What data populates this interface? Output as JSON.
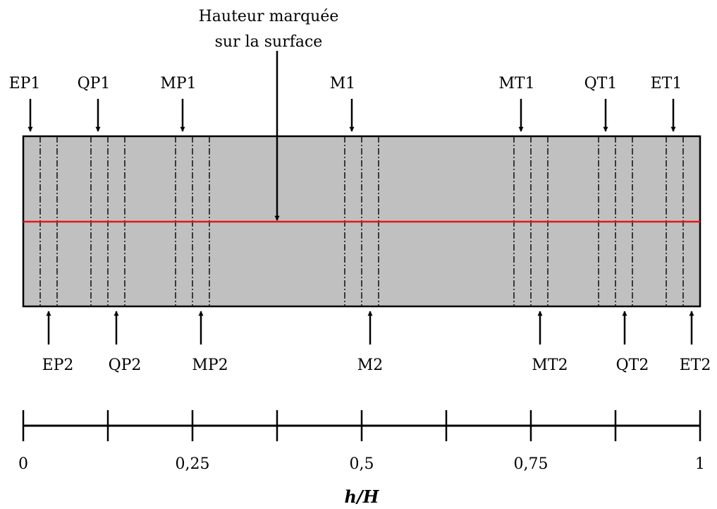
{
  "annotation": {
    "line1": "Hauteur marquée",
    "line2": "sur la surface"
  },
  "top_labels": [
    "EP1",
    "QP1",
    "MP1",
    "M1",
    "MT1",
    "QT1",
    "ET1"
  ],
  "bottom_labels": [
    "EP2",
    "QP2",
    "MP2",
    "M2",
    "MT2",
    "QT2",
    "ET2"
  ],
  "axis": {
    "title": "h/H",
    "ticks": [
      0,
      0.125,
      0.25,
      0.375,
      0.5,
      0.625,
      0.75,
      0.875,
      1
    ],
    "tick_labels": [
      {
        "value": 0,
        "text": "0"
      },
      {
        "value": 0.25,
        "text": "0,25"
      },
      {
        "value": 0.5,
        "text": "0,5"
      },
      {
        "value": 0.75,
        "text": "0,75"
      },
      {
        "value": 1,
        "text": "1"
      }
    ]
  },
  "colors": {
    "panel_fill": "#c0c0c0",
    "marked_line": "#e8141b",
    "ink": "#000000"
  }
}
